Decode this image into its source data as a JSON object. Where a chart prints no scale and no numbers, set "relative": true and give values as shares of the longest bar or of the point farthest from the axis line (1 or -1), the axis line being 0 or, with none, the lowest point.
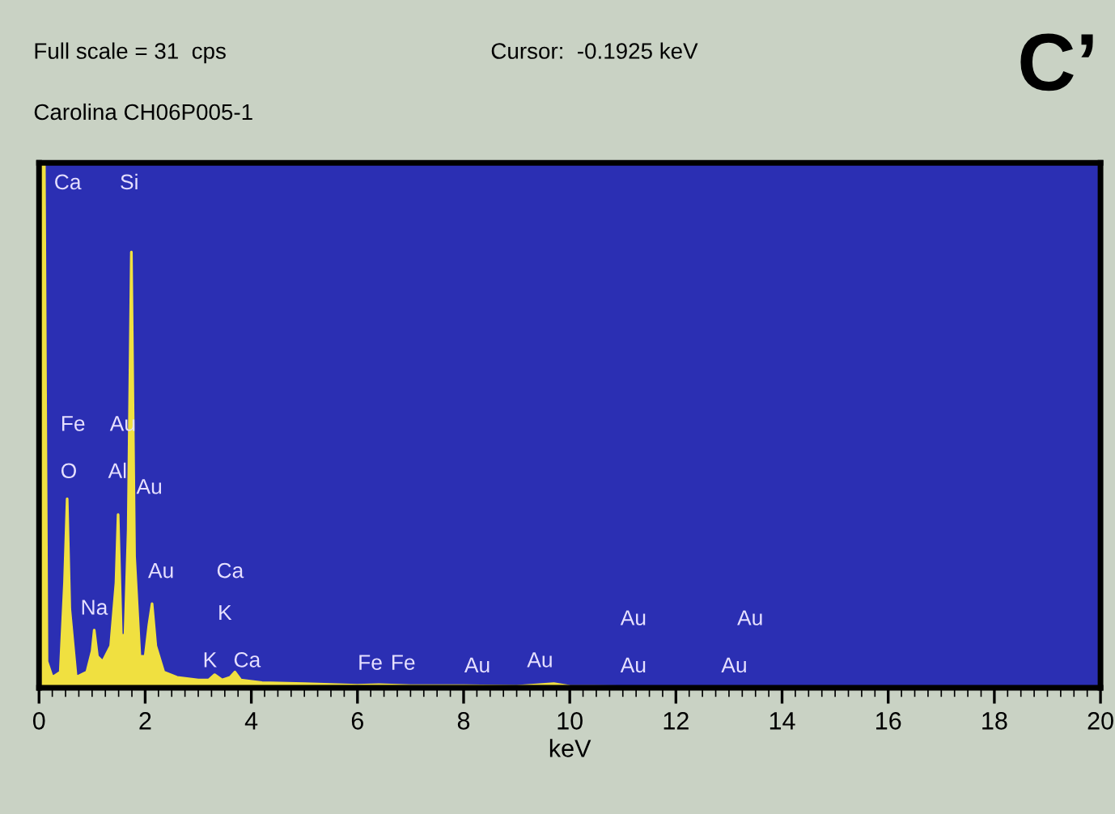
{
  "chart_data": {
    "type": "area",
    "relative": true,
    "xlabel": "keV",
    "x": [
      0,
      0.05,
      0.1,
      0.15,
      0.25,
      0.4,
      0.48,
      0.53,
      0.58,
      0.7,
      0.9,
      1.0,
      1.04,
      1.1,
      1.2,
      1.35,
      1.45,
      1.49,
      1.55,
      1.62,
      1.68,
      1.74,
      1.8,
      1.9,
      2.0,
      2.07,
      2.13,
      2.2,
      2.35,
      2.6,
      3.0,
      3.2,
      3.31,
      3.45,
      3.6,
      3.69,
      3.8,
      4.2,
      5,
      6,
      6.4,
      7,
      8,
      9,
      9.7,
      10,
      11,
      12,
      14,
      16,
      18,
      20
    ],
    "series": [
      {
        "color": "#f0e040",
        "values": [
          0.02,
          1.0,
          1.0,
          0.05,
          0.02,
          0.03,
          0.2,
          0.36,
          0.15,
          0.02,
          0.03,
          0.07,
          0.11,
          0.06,
          0.05,
          0.08,
          0.2,
          0.33,
          0.1,
          0.1,
          0.3,
          0.83,
          0.25,
          0.06,
          0.06,
          0.12,
          0.16,
          0.08,
          0.03,
          0.02,
          0.015,
          0.015,
          0.025,
          0.015,
          0.02,
          0.03,
          0.015,
          0.01,
          0.008,
          0.005,
          0.006,
          0.004,
          0.004,
          0.003,
          0.008,
          0.003,
          0.002,
          0.002,
          0.001,
          0.001,
          0.001,
          0.001
        ]
      }
    ],
    "xlim": [
      0,
      20
    ],
    "xticks": [
      0,
      2,
      4,
      6,
      8,
      10,
      12,
      14,
      16,
      18,
      20
    ],
    "grid": false,
    "annotations": [
      "Full scale = 31  cps",
      "Cursor:  -0.1925 keV",
      "C’",
      "Carolina CH06P005-1",
      "Ca",
      "Si",
      "Fe",
      "O",
      "Au",
      "Al",
      "Au",
      "Au",
      "Na",
      "Ca",
      "K",
      "K",
      "Ca",
      "Fe",
      "Fe",
      "Au",
      "Au",
      "Au",
      "Au",
      "Au",
      "Au"
    ]
  }
}
